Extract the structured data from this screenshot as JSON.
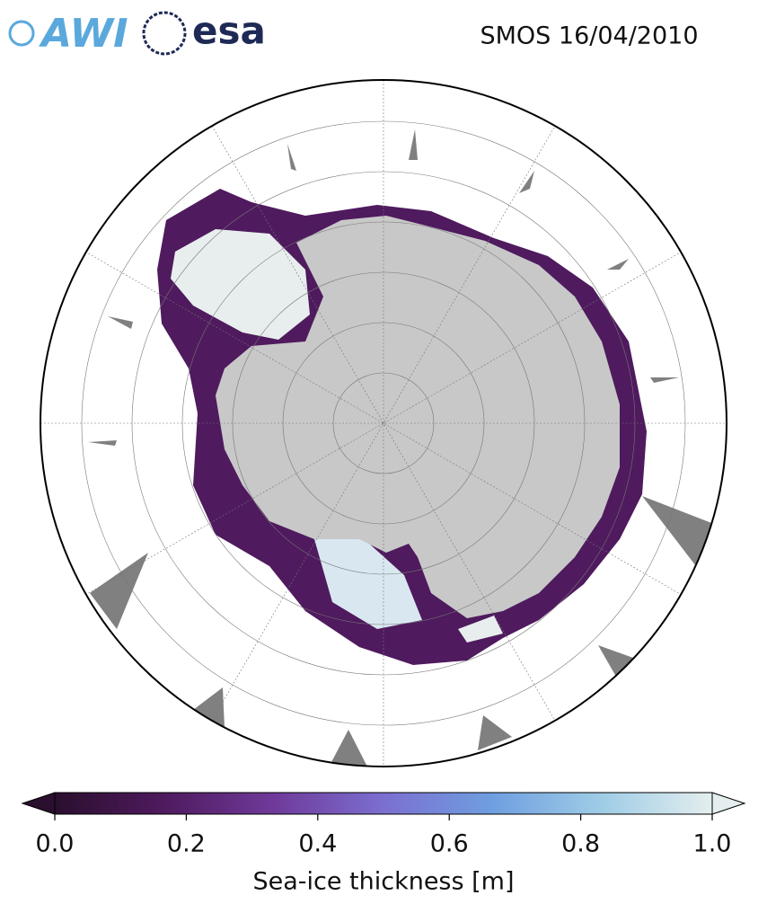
{
  "header": {
    "title": "SMOS 16/04/2010",
    "logos": [
      "AWI",
      "esa"
    ]
  },
  "colorbar": {
    "label": "Sea-ice thickness [m]",
    "lim": [
      0,
      1
    ],
    "ticks": [
      {
        "value": 0,
        "label": "0.0"
      },
      {
        "value": 0.2,
        "label": "0.2"
      },
      {
        "value": 0.4,
        "label": "0.4"
      },
      {
        "value": 0.6,
        "label": "0.6"
      },
      {
        "value": 0.8,
        "label": "0.8"
      },
      {
        "value": 1,
        "label": "1.0"
      }
    ],
    "colors": [
      "#2a0f2e",
      "#4f1a5e",
      "#6f3a9a",
      "#7b6fd0",
      "#6f9fe0",
      "#9fcde6",
      "#e4eeee"
    ]
  }
}
